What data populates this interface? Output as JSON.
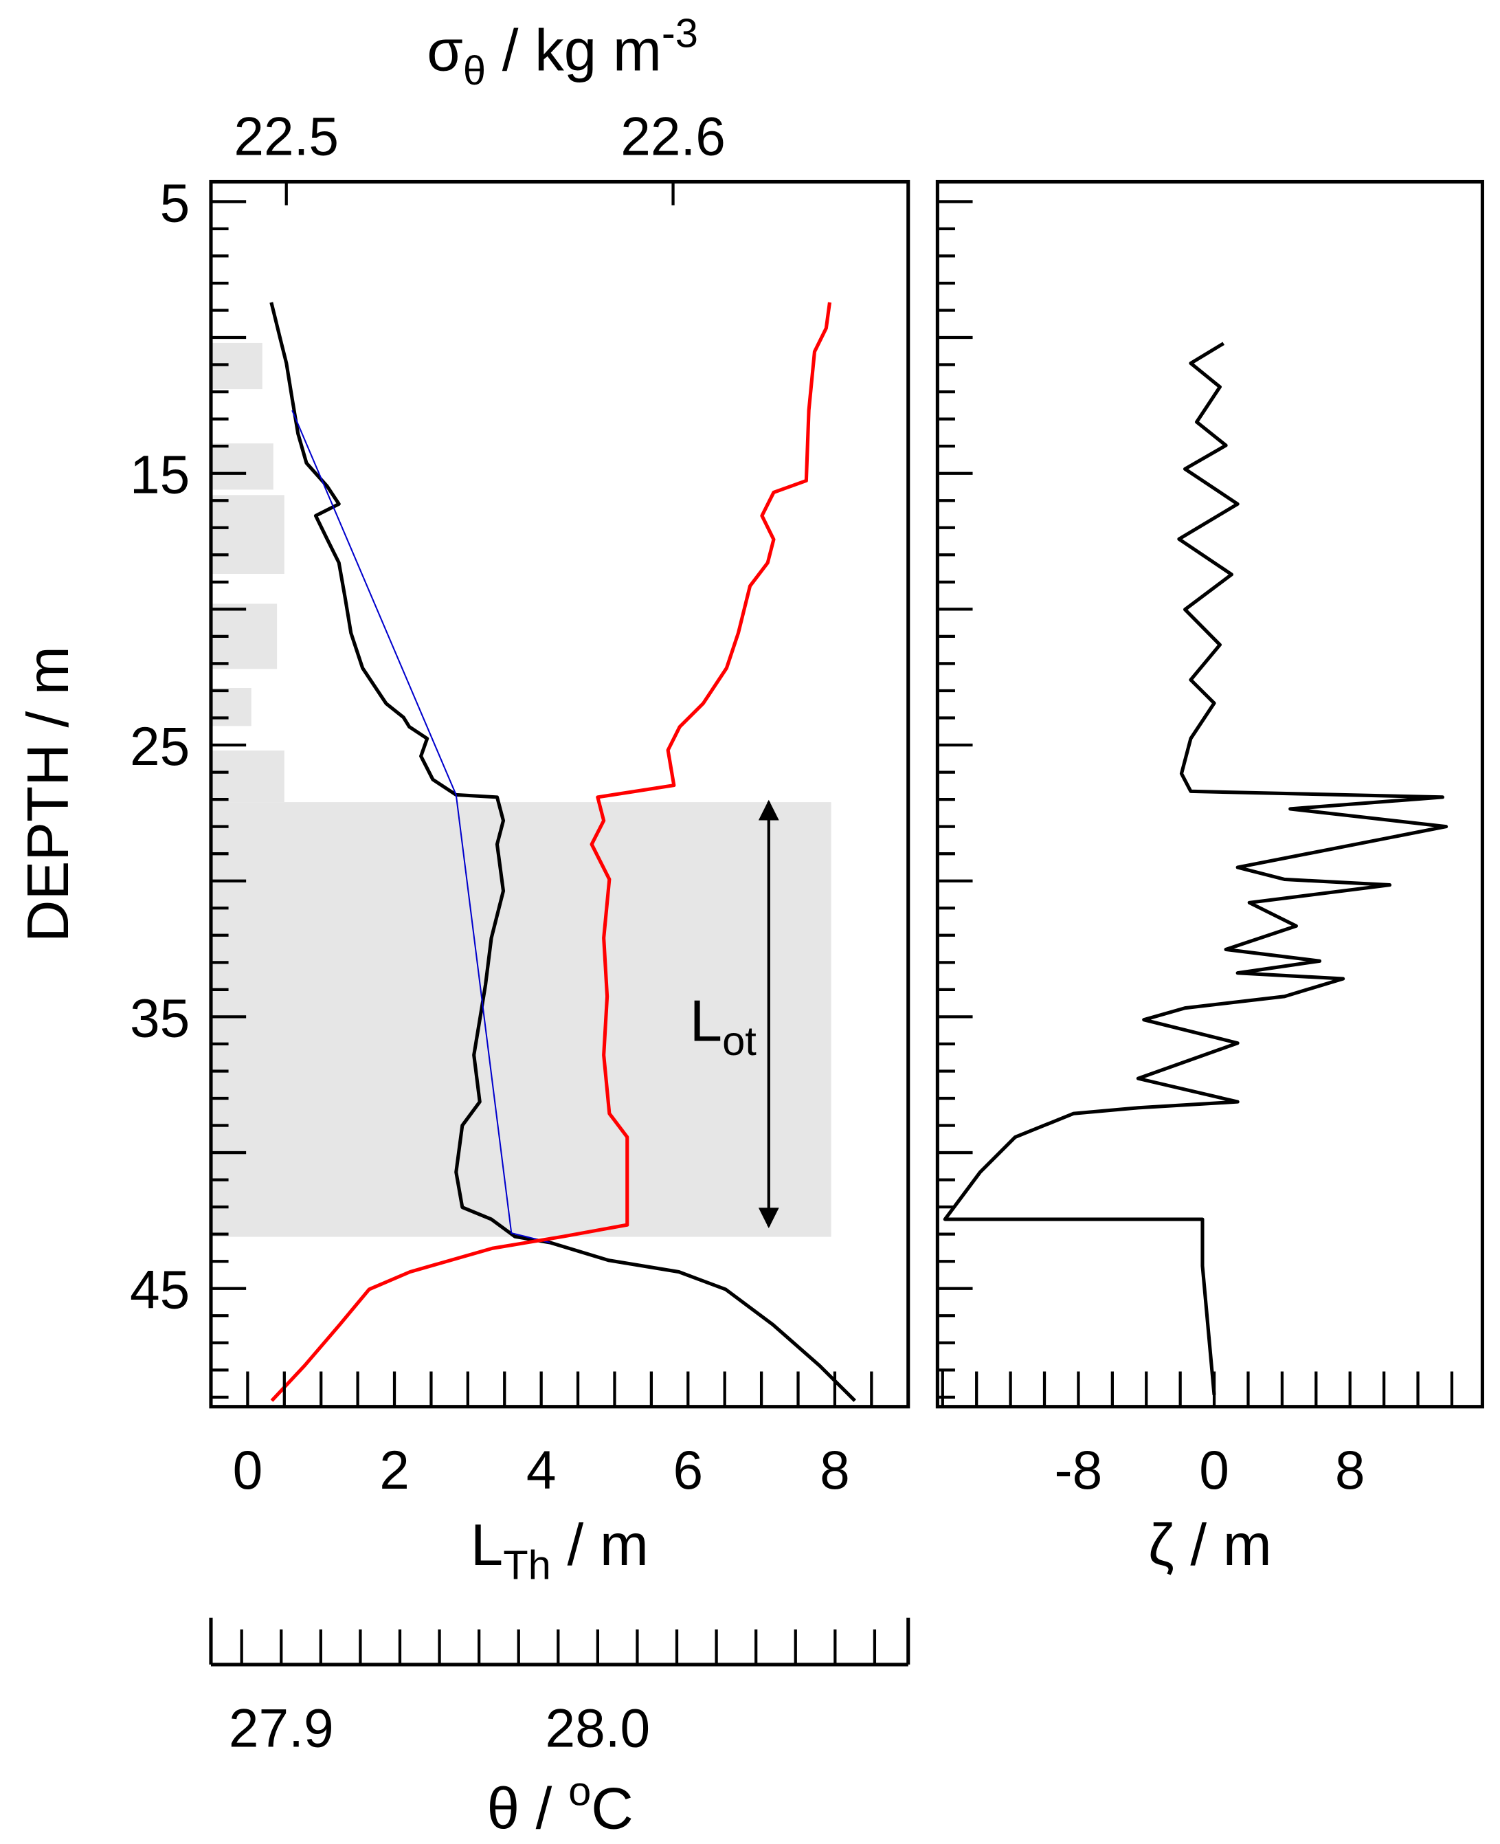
{
  "chart_data": [
    {
      "type": "line",
      "y_label": [
        {
          "t": "DEPTH / m"
        }
      ],
      "ylim": [
        4.27,
        49.35
      ],
      "yticks": [
        5,
        15,
        25,
        35,
        45
      ],
      "yminor": [
        5,
        6,
        7,
        8,
        9,
        10,
        11,
        12,
        13,
        14,
        15,
        16,
        17,
        18,
        19,
        20,
        21,
        22,
        23,
        24,
        25,
        26,
        27,
        28,
        29,
        30,
        31,
        32,
        33,
        34,
        35,
        36,
        37,
        38,
        39,
        40,
        41,
        42,
        43,
        44,
        45,
        46,
        47,
        48,
        49
      ],
      "x_label": [
        {
          "t": "L"
        },
        {
          "t": "Th",
          "s": "sub"
        },
        {
          "t": " / m"
        }
      ],
      "xlim": [
        -0.5,
        9
      ],
      "xticks": [
        0,
        2,
        4,
        6,
        8
      ],
      "xminor": [
        0,
        0.5,
        1,
        1.5,
        2,
        2.5,
        3,
        3.5,
        4,
        4.5,
        5,
        5.5,
        6,
        6.5,
        7,
        7.5,
        8,
        8.5
      ],
      "top_axis": {
        "label": [
          {
            "t": "σ"
          },
          {
            "t": "θ",
            "s": "sub"
          },
          {
            "t": " / kg m"
          },
          {
            "t": "-3",
            "s": "sup"
          }
        ],
        "lim": [
          22.4805,
          22.6608
        ],
        "ticks": [
          22.5,
          22.6
        ]
      },
      "bottom_axis": {
        "label": [
          {
            "t": "θ / "
          },
          {
            "t": "o",
            "s": "sup"
          },
          {
            "t": "C"
          }
        ],
        "lim": [
          27.8778,
          28.0981
        ],
        "ticks": [
          {
            "value": 27.9,
            "label": "27.9"
          },
          {
            "value": 28.0,
            "label": "28.0"
          }
        ],
        "minor": [
          27.8875,
          27.9,
          27.9125,
          27.925,
          27.9375,
          27.95,
          27.9625,
          27.975,
          27.9875,
          28.0,
          28.0125,
          28.025,
          28.0375,
          28.05,
          28.0625,
          28.075,
          28.0875
        ]
      },
      "bars": {
        "color": "#e6e6e6",
        "top": [
          10.2,
          13.9,
          15.8,
          19.8,
          22.9,
          25.2,
          27.1
        ],
        "bottom": [
          11.9,
          15.6,
          18.7,
          22.2,
          24.3,
          27.1,
          43.1
        ],
        "values": [
          0.2,
          0.35,
          0.5,
          0.4,
          0.05,
          0.5,
          7.95
        ]
      },
      "series": [
        {
          "axis": "top",
          "color": "#000000",
          "values": [
            22.4961,
            22.497,
            22.4985,
            22.5,
            22.5015,
            22.503,
            22.5052,
            22.5106,
            22.5136,
            22.5076,
            22.5106,
            22.5136,
            22.5152,
            22.5167,
            22.5197,
            22.5258,
            22.5303,
            22.5318,
            22.5364,
            22.5348,
            22.5379,
            22.5439,
            22.5545,
            22.5561,
            22.5545,
            22.5561,
            22.553,
            22.5515,
            22.55,
            22.5485,
            22.55,
            22.5455,
            22.5439,
            22.5455,
            22.553,
            22.5591,
            22.5682,
            22.5833,
            22.6015,
            22.6136,
            22.6258,
            22.6379,
            22.647
          ],
          "depth": [
            8.71,
            9.23,
            10.09,
            10.95,
            12.25,
            13.54,
            14.62,
            15.48,
            16.13,
            16.56,
            17.43,
            18.29,
            19.58,
            20.88,
            22.17,
            23.47,
            23.98,
            24.33,
            24.76,
            25.41,
            26.27,
            26.83,
            26.92,
            27.78,
            28.65,
            30.37,
            32.1,
            33.82,
            35.11,
            36.41,
            38.13,
            39.0,
            40.72,
            42.01,
            42.45,
            43.09,
            43.31,
            43.96,
            44.39,
            45.03,
            46.33,
            47.84,
            49.13
          ]
        },
        {
          "axis": "top",
          "color": "#0000cc",
          "values": [
            22.5015,
            22.5439,
            22.5582,
            22.5682
          ],
          "depth": [
            12.68,
            26.83,
            42.96,
            43.31
          ]
        },
        {
          "axis": "bottom",
          "color": "#ff0000",
          "values": [
            28.0733,
            28.0722,
            28.0685,
            28.0667,
            28.0659,
            28.0556,
            28.0519,
            28.0556,
            28.0537,
            28.0481,
            28.0444,
            28.0407,
            28.0333,
            28.0259,
            28.0222,
            28.0241,
            28.0,
            28.0019,
            27.9981,
            28.0037,
            28.0019,
            28.003,
            28.0019,
            28.0037,
            28.0093,
            28.0093,
            28.0093,
            27.9889,
            27.9667,
            27.9407,
            27.9278,
            27.9185,
            27.9074,
            27.897
          ],
          "depth": [
            8.71,
            9.66,
            10.52,
            12.68,
            15.27,
            15.7,
            16.56,
            17.43,
            18.29,
            19.15,
            20.88,
            22.17,
            23.47,
            24.33,
            25.19,
            26.48,
            26.92,
            27.78,
            28.65,
            29.94,
            32.1,
            34.25,
            36.41,
            38.56,
            39.43,
            40.72,
            42.66,
            43.09,
            43.52,
            44.39,
            45.03,
            46.33,
            47.84,
            49.13
          ]
        }
      ],
      "annotation": [
        {
          "t": "L"
        },
        {
          "t": "ot",
          "s": "sub"
        }
      ]
    },
    {
      "type": "line",
      "ylim": [
        4.27,
        49.35
      ],
      "yminor": [
        5,
        6,
        7,
        8,
        9,
        10,
        11,
        12,
        13,
        14,
        15,
        16,
        17,
        18,
        19,
        20,
        21,
        22,
        23,
        24,
        25,
        26,
        27,
        28,
        29,
        30,
        31,
        32,
        33,
        34,
        35,
        36,
        37,
        38,
        39,
        40,
        41,
        42,
        43,
        44,
        45,
        46,
        47,
        48,
        49
      ],
      "x_label": [
        {
          "t": "ζ / m"
        }
      ],
      "xlim": [
        -16.3,
        15.8
      ],
      "xticks": [
        -8,
        0,
        8
      ],
      "xminor": [
        -16,
        -14,
        -12,
        -10,
        -8,
        -6,
        -4,
        -2,
        0,
        2,
        4,
        6,
        8,
        10,
        12,
        14
      ],
      "series": [
        {
          "axis": "x",
          "color": "#000000",
          "values": [
            0.55,
            -1.38,
            0.34,
            -1.03,
            0.69,
            -1.72,
            1.38,
            -2.07,
            1.03,
            -1.72,
            0.34,
            -1.38,
            0.0,
            -1.38,
            -1.93,
            -1.38,
            13.45,
            4.48,
            13.66,
            1.38,
            4.14,
            10.34,
            2.07,
            4.83,
            0.69,
            6.21,
            1.38,
            7.59,
            4.14,
            -1.72,
            -4.14,
            1.38,
            -4.48,
            1.38,
            -4.48,
            -8.28,
            -11.72,
            -13.79,
            -15.86,
            -0.69,
            -0.69,
            0.0
          ],
          "depth": [
            10.22,
            10.95,
            11.82,
            13.11,
            13.97,
            14.84,
            16.13,
            17.42,
            18.72,
            20.01,
            21.31,
            22.6,
            23.46,
            24.76,
            26.05,
            26.7,
            26.92,
            27.35,
            28.0,
            29.5,
            29.94,
            30.15,
            30.8,
            31.66,
            32.52,
            32.95,
            33.39,
            33.6,
            34.25,
            34.68,
            35.11,
            35.97,
            37.27,
            38.13,
            38.35,
            38.56,
            39.43,
            40.72,
            42.45,
            42.45,
            44.17,
            48.92
          ]
        }
      ]
    }
  ]
}
